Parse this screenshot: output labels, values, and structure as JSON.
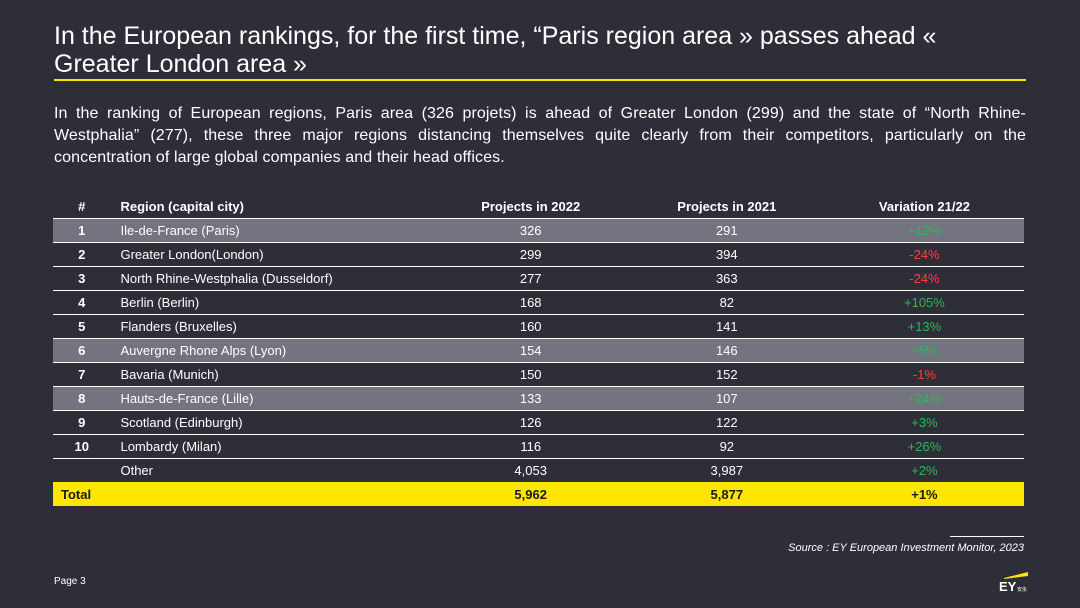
{
  "title": "In the European rankings, for the first time, “Paris region area » passes ahead « Greater London area »",
  "intro": "In the ranking of European regions, Paris area (326 projets) is ahead of Greater London (299) and the state of “North Rhine-Westphalia” (277), these three major regions distancing themselves quite clearly from their competitors, particularly on the concentration of large global companies and their head offices.",
  "table": {
    "headers": [
      "#",
      "Region (capital city)",
      "Projects in 2022",
      "Projects in 2021",
      "Variation 21/22"
    ],
    "rows": [
      {
        "rank": "1",
        "region": "Ile-de-France (Paris)",
        "p2022": "326",
        "p2021": "291",
        "variation": "+12%",
        "trend": "pos",
        "shaded": true
      },
      {
        "rank": "2",
        "region": "Greater London(London)",
        "p2022": "299",
        "p2021": "394",
        "variation": "-24%",
        "trend": "neg",
        "shaded": false
      },
      {
        "rank": "3",
        "region": "North Rhine-Westphalia (Dusseldorf)",
        "p2022": "277",
        "p2021": "363",
        "variation": "-24%",
        "trend": "neg",
        "shaded": false
      },
      {
        "rank": "4",
        "region": "Berlin (Berlin)",
        "p2022": "168",
        "p2021": "82",
        "variation": "+105%",
        "trend": "pos",
        "shaded": false
      },
      {
        "rank": "5",
        "region": "Flanders (Bruxelles)",
        "p2022": "160",
        "p2021": "141",
        "variation": "+13%",
        "trend": "pos",
        "shaded": false
      },
      {
        "rank": "6",
        "region": "Auvergne Rhone Alps (Lyon)",
        "p2022": "154",
        "p2021": "146",
        "variation": "+5%",
        "trend": "pos",
        "shaded": true
      },
      {
        "rank": "7",
        "region": "Bavaria (Munich)",
        "p2022": "150",
        "p2021": "152",
        "variation": "-1%",
        "trend": "neg",
        "shaded": false
      },
      {
        "rank": "8",
        "region": "Hauts-de-France (Lille)",
        "p2022": "133",
        "p2021": "107",
        "variation": "+24%",
        "trend": "pos",
        "shaded": true
      },
      {
        "rank": "9",
        "region": "Scotland (Edinburgh)",
        "p2022": "126",
        "p2021": "122",
        "variation": "+3%",
        "trend": "pos",
        "shaded": false
      },
      {
        "rank": "10",
        "region": "Lombardy (Milan)",
        "p2022": "116",
        "p2021": "92",
        "variation": "+26%",
        "trend": "pos",
        "shaded": false
      }
    ],
    "other": {
      "rank": "",
      "region": "Other",
      "p2022": "4,053",
      "p2021": "3,987",
      "variation": "+2%",
      "trend": "pos"
    },
    "total": {
      "label": "Total",
      "p2022": "5,962",
      "p2021": "5,877",
      "variation": "+1%"
    }
  },
  "source": "Source : EY European Investment Monitor, 2023",
  "page": "Page 3",
  "logo": {
    "text": "EY",
    "sub": "安永"
  },
  "colors": {
    "background": "#2e2e38",
    "accent": "#ffe600",
    "shade": "#747480",
    "positive": "#2db757",
    "negative": "#ff4136"
  }
}
